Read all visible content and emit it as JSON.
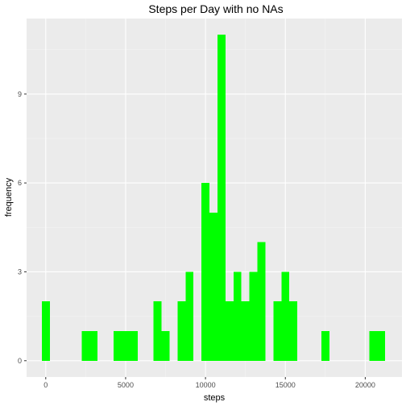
{
  "chart_data": {
    "type": "bar",
    "title": "Steps per Day with no NAs",
    "xlabel": "steps",
    "ylabel": "frequency",
    "xlim": [
      -1200,
      22300
    ],
    "ylim": [
      -0.55,
      11.55
    ],
    "x_ticks": [
      0,
      5000,
      10000,
      15000,
      20000
    ],
    "x_tick_labels": [
      "0",
      "5000",
      "10000",
      "15000",
      "20000"
    ],
    "y_ticks": [
      0,
      3,
      6,
      9
    ],
    "y_tick_labels": [
      "0",
      "3",
      "6",
      "9"
    ],
    "bin_width": 500,
    "bins": [
      {
        "x_start": -250,
        "x_end": 250,
        "count": 2
      },
      {
        "x_start": 2250,
        "x_end": 2750,
        "count": 1
      },
      {
        "x_start": 2750,
        "x_end": 3250,
        "count": 1
      },
      {
        "x_start": 4250,
        "x_end": 4750,
        "count": 1
      },
      {
        "x_start": 4750,
        "x_end": 5250,
        "count": 1
      },
      {
        "x_start": 5250,
        "x_end": 5750,
        "count": 1
      },
      {
        "x_start": 6750,
        "x_end": 7250,
        "count": 2
      },
      {
        "x_start": 7250,
        "x_end": 7750,
        "count": 1
      },
      {
        "x_start": 8250,
        "x_end": 8750,
        "count": 2
      },
      {
        "x_start": 8750,
        "x_end": 9250,
        "count": 3
      },
      {
        "x_start": 9750,
        "x_end": 10250,
        "count": 6
      },
      {
        "x_start": 10250,
        "x_end": 10750,
        "count": 5
      },
      {
        "x_start": 10750,
        "x_end": 11250,
        "count": 11
      },
      {
        "x_start": 11250,
        "x_end": 11750,
        "count": 2
      },
      {
        "x_start": 11750,
        "x_end": 12250,
        "count": 3
      },
      {
        "x_start": 12250,
        "x_end": 12750,
        "count": 2
      },
      {
        "x_start": 12750,
        "x_end": 13250,
        "count": 3
      },
      {
        "x_start": 13250,
        "x_end": 13750,
        "count": 4
      },
      {
        "x_start": 14250,
        "x_end": 14750,
        "count": 2
      },
      {
        "x_start": 14750,
        "x_end": 15250,
        "count": 3
      },
      {
        "x_start": 15250,
        "x_end": 15750,
        "count": 2
      },
      {
        "x_start": 17250,
        "x_end": 17750,
        "count": 1
      },
      {
        "x_start": 20250,
        "x_end": 20750,
        "count": 1
      },
      {
        "x_start": 20750,
        "x_end": 21250,
        "count": 1
      }
    ],
    "grid": true,
    "legend": "none",
    "colors": {
      "bar": "#00ff00",
      "panel_background": "#ebebeb",
      "grid_major": "#ffffff",
      "grid_minor": "#f5f5f5",
      "tick_label": "#4d4d4d",
      "tick_mark": "#333333"
    }
  }
}
